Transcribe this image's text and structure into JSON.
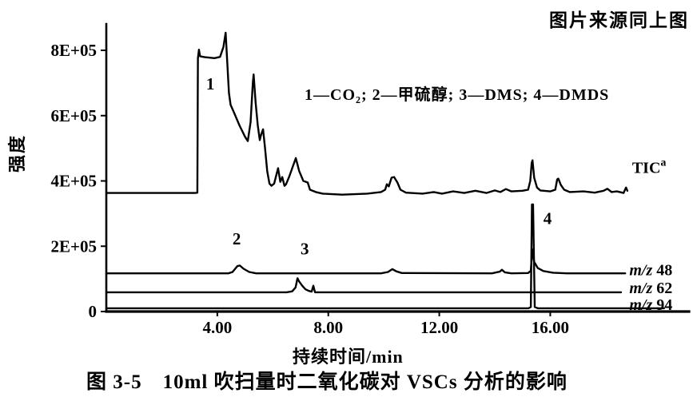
{
  "header": {
    "source_note": "图片来源同上图"
  },
  "figure": {
    "caption": "图 3-5　10ml 吹扫量时二氧化碳对 VSCs 分析的影响"
  },
  "chart_data": {
    "type": "line",
    "title": "",
    "xlabel": "持续时间/min",
    "ylabel": "强度",
    "xlim": [
      0,
      21
    ],
    "ylim": [
      0,
      880000
    ],
    "grid": false,
    "legend_position": "inside-top-center",
    "legend_text": "1—CO₂; 2—甲硫醇; 3—DMS; 4—DMDS",
    "legend_items": [
      "1—CO₂",
      "2—甲硫醇",
      "3—DMS",
      "4—DMDS"
    ],
    "x_ticks": [
      {
        "value": 4,
        "label": "4.00"
      },
      {
        "value": 8,
        "label": "8.00"
      },
      {
        "value": 12,
        "label": "12.00"
      },
      {
        "value": 16,
        "label": "16.00"
      }
    ],
    "y_ticks": [
      {
        "value": 800000,
        "label": "8E+05"
      },
      {
        "value": 600000,
        "label": "6E+05"
      },
      {
        "value": 400000,
        "label": "4E+05"
      },
      {
        "value": 200000,
        "label": "2E+05"
      },
      {
        "value": 0,
        "label": "0"
      }
    ],
    "peak_labels": [
      {
        "text": "1",
        "t": 3.75,
        "v": 680000
      },
      {
        "text": "2",
        "t": 4.7,
        "v": 205000
      },
      {
        "text": "3",
        "t": 7.15,
        "v": 175000
      },
      {
        "text": "4",
        "t": 15.9,
        "v": 268000
      }
    ],
    "trace_labels": [
      {
        "text": "TIC",
        "sup": "a",
        "t": 18.95,
        "v": 442000
      },
      {
        "text": "m/z 48",
        "t": 18.85,
        "v": 128000
      },
      {
        "text": "m/z 62",
        "t": 18.85,
        "v": 74000
      },
      {
        "text": "m/z 94",
        "t": 18.85,
        "v": 22000
      }
    ],
    "series": [
      {
        "name": "TIC",
        "points": [
          [
            0,
            363000
          ],
          [
            3.2,
            363000
          ],
          [
            3.28,
            364000
          ],
          [
            3.3,
            775000
          ],
          [
            3.34,
            802000
          ],
          [
            3.38,
            782000
          ],
          [
            3.55,
            779000
          ],
          [
            3.9,
            776000
          ],
          [
            4.1,
            780000
          ],
          [
            4.22,
            810000
          ],
          [
            4.3,
            854000
          ],
          [
            4.36,
            760000
          ],
          [
            4.42,
            670000
          ],
          [
            4.48,
            633000
          ],
          [
            4.6,
            610000
          ],
          [
            4.8,
            570000
          ],
          [
            5.0,
            535000
          ],
          [
            5.1,
            522000
          ],
          [
            5.2,
            580000
          ],
          [
            5.28,
            700000
          ],
          [
            5.31,
            726000
          ],
          [
            5.38,
            640000
          ],
          [
            5.46,
            570000
          ],
          [
            5.53,
            525000
          ],
          [
            5.58,
            542000
          ],
          [
            5.65,
            558000
          ],
          [
            5.72,
            500000
          ],
          [
            5.8,
            430000
          ],
          [
            5.88,
            392000
          ],
          [
            5.95,
            385000
          ],
          [
            6.05,
            392000
          ],
          [
            6.19,
            439000
          ],
          [
            6.27,
            397000
          ],
          [
            6.34,
            412000
          ],
          [
            6.42,
            385000
          ],
          [
            6.48,
            390000
          ],
          [
            6.6,
            415000
          ],
          [
            6.83,
            470000
          ],
          [
            6.95,
            430000
          ],
          [
            7.1,
            400000
          ],
          [
            7.26,
            395000
          ],
          [
            7.34,
            373000
          ],
          [
            7.55,
            366000
          ],
          [
            7.8,
            361000
          ],
          [
            8.5,
            358000
          ],
          [
            9.4,
            361000
          ],
          [
            9.9,
            366000
          ],
          [
            10.05,
            373000
          ],
          [
            10.11,
            390000
          ],
          [
            10.18,
            383000
          ],
          [
            10.28,
            410000
          ],
          [
            10.37,
            412000
          ],
          [
            10.49,
            395000
          ],
          [
            10.6,
            373000
          ],
          [
            10.8,
            364000
          ],
          [
            11.4,
            361000
          ],
          [
            11.8,
            366000
          ],
          [
            12.1,
            361000
          ],
          [
            12.5,
            368000
          ],
          [
            12.9,
            363000
          ],
          [
            13.3,
            370000
          ],
          [
            13.7,
            363000
          ],
          [
            14.0,
            371000
          ],
          [
            14.2,
            366000
          ],
          [
            14.4,
            375000
          ],
          [
            14.6,
            368000
          ],
          [
            15.0,
            370000
          ],
          [
            15.2,
            373000
          ],
          [
            15.28,
            400000
          ],
          [
            15.33,
            455000
          ],
          [
            15.36,
            463000
          ],
          [
            15.42,
            410000
          ],
          [
            15.52,
            380000
          ],
          [
            15.64,
            371000
          ],
          [
            16.0,
            368000
          ],
          [
            16.18,
            373000
          ],
          [
            16.25,
            405000
          ],
          [
            16.29,
            407000
          ],
          [
            16.38,
            388000
          ],
          [
            16.5,
            373000
          ],
          [
            16.7,
            366000
          ],
          [
            17.2,
            368000
          ],
          [
            17.6,
            364000
          ],
          [
            17.92,
            370000
          ],
          [
            18.06,
            376000
          ],
          [
            18.21,
            366000
          ],
          [
            18.4,
            368000
          ],
          [
            18.64,
            363000
          ],
          [
            18.73,
            380000
          ],
          [
            18.78,
            370000
          ]
        ]
      },
      {
        "name": "m/z 48",
        "points": [
          [
            0,
            117000
          ],
          [
            4.4,
            117000
          ],
          [
            4.55,
            121000
          ],
          [
            4.72,
            139000
          ],
          [
            4.81,
            141000
          ],
          [
            4.95,
            131000
          ],
          [
            5.15,
            121000
          ],
          [
            5.4,
            117000
          ],
          [
            9.9,
            117000
          ],
          [
            10.15,
            121000
          ],
          [
            10.31,
            130000
          ],
          [
            10.45,
            123000
          ],
          [
            10.65,
            118000
          ],
          [
            13.9,
            117000
          ],
          [
            14.18,
            122000
          ],
          [
            14.26,
            128000
          ],
          [
            14.36,
            120000
          ],
          [
            14.6,
            117000
          ],
          [
            15.2,
            118000
          ],
          [
            15.3,
            125000
          ],
          [
            15.35,
            190000
          ],
          [
            15.42,
            152000
          ],
          [
            15.55,
            133000
          ],
          [
            15.75,
            124000
          ],
          [
            16.1,
            119000
          ],
          [
            16.6,
            117000
          ],
          [
            18.7,
            117000
          ]
        ]
      },
      {
        "name": "m/z 62",
        "points": [
          [
            0,
            59000
          ],
          [
            6.5,
            59000
          ],
          [
            6.7,
            62000
          ],
          [
            6.82,
            74000
          ],
          [
            6.89,
            102000
          ],
          [
            6.95,
            92000
          ],
          [
            7.06,
            79000
          ],
          [
            7.18,
            68000
          ],
          [
            7.3,
            63000
          ],
          [
            7.4,
            61000
          ],
          [
            7.46,
            79000
          ],
          [
            7.52,
            59000
          ],
          [
            12.0,
            59000
          ],
          [
            18.55,
            59000
          ]
        ]
      },
      {
        "name": "m/z 94",
        "points": [
          [
            0,
            10000
          ],
          [
            15.22,
            10000
          ],
          [
            15.3,
            14000
          ],
          [
            15.34,
            328000
          ],
          [
            15.38,
            328000
          ],
          [
            15.44,
            14000
          ],
          [
            15.55,
            10000
          ],
          [
            20.1,
            10000
          ]
        ]
      }
    ]
  }
}
